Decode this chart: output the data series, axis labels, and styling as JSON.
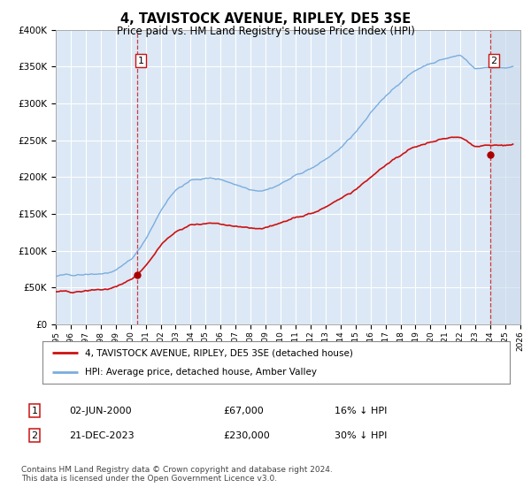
{
  "title": "4, TAVISTOCK AVENUE, RIPLEY, DE5 3SE",
  "subtitle": "Price paid vs. HM Land Registry's House Price Index (HPI)",
  "ylim": [
    0,
    400000
  ],
  "yticks": [
    0,
    50000,
    100000,
    150000,
    200000,
    250000,
    300000,
    350000,
    400000
  ],
  "ytick_labels": [
    "£0",
    "£50K",
    "£100K",
    "£150K",
    "£200K",
    "£250K",
    "£300K",
    "£350K",
    "£400K"
  ],
  "plot_bg_color": "#dce8f5",
  "fig_bg_color": "#ffffff",
  "hpi_color": "#7aadde",
  "price_color": "#cc1111",
  "marker_color": "#aa0000",
  "grid_color": "#ffffff",
  "sale1_date": 2000.42,
  "sale1_price": 67000,
  "sale1_label": "1",
  "sale2_date": 2023.97,
  "sale2_price": 230000,
  "sale2_label": "2",
  "legend_line1": "4, TAVISTOCK AVENUE, RIPLEY, DE5 3SE (detached house)",
  "legend_line2": "HPI: Average price, detached house, Amber Valley",
  "note1_label": "1",
  "note1_date": "02-JUN-2000",
  "note1_price": "£67,000",
  "note1_hpi": "16% ↓ HPI",
  "note2_label": "2",
  "note2_date": "21-DEC-2023",
  "note2_price": "£230,000",
  "note2_hpi": "30% ↓ HPI",
  "footer": "Contains HM Land Registry data © Crown copyright and database right 2024.\nThis data is licensed under the Open Government Licence v3.0.",
  "xmin": 1995,
  "xmax": 2026
}
